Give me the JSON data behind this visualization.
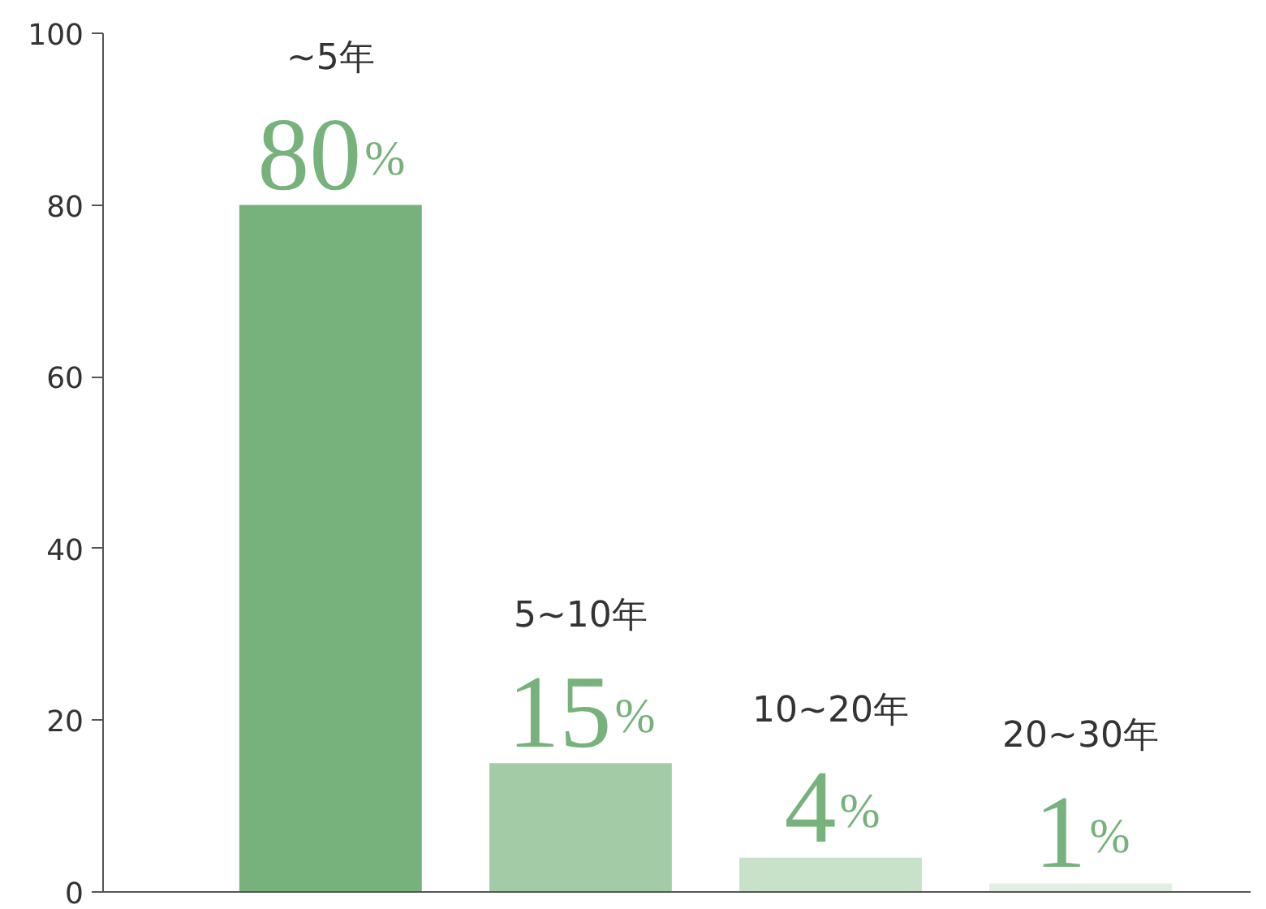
{
  "chart_data": {
    "type": "bar",
    "categories": [
      "~5年",
      "5~10年",
      "10~20年",
      "20~30年"
    ],
    "values": [
      80,
      15,
      4,
      1
    ],
    "colors": [
      "#77b27c",
      "#a3cba5",
      "#c8e2ca",
      "#e1efe2"
    ],
    "value_labels": [
      "80%",
      "15%",
      "4%",
      "1%"
    ],
    "ylim": [
      0,
      100
    ],
    "yticks": [
      0,
      20,
      40,
      60,
      80,
      100
    ],
    "grid": false,
    "tick_labels": "y"
  }
}
